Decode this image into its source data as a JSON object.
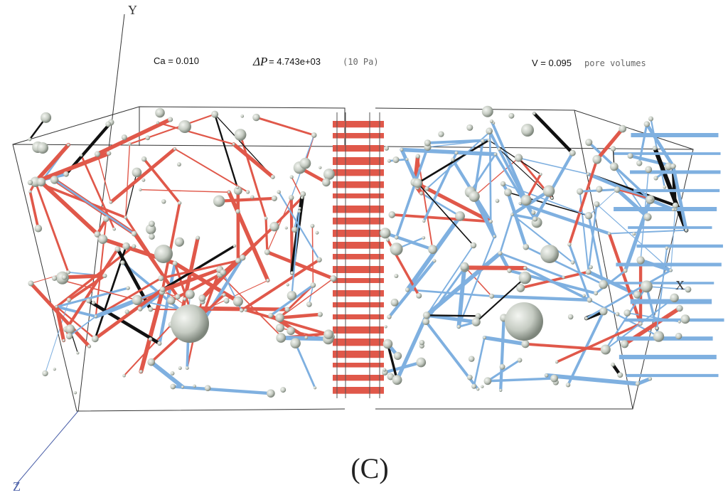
{
  "axes": {
    "y_label": "Y",
    "x_label": "X",
    "z_label": "Z"
  },
  "header": {
    "ca": "Ca = 0.010",
    "dp_symbol": "ΔP",
    "dp_value": "= 4.743e+03",
    "dp_unit": "(10 Pa)",
    "v_value": "V = 0.095",
    "v_unit": "pore volumes"
  },
  "caption": "(C)"
}
